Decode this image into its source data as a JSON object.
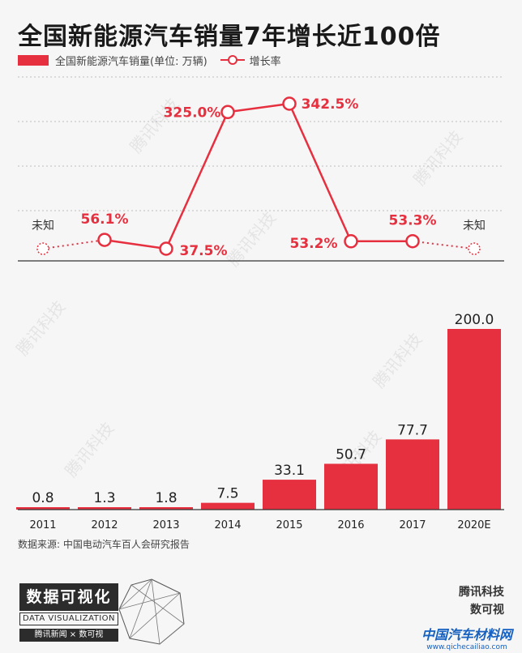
{
  "header": {
    "title": "全国新能源汽车销量7年增长近100倍",
    "legend_sales": "全国新能源汽车销量(单位: 万辆)",
    "legend_rate": "增长率"
  },
  "chart_data": [
    {
      "type": "line",
      "title": "",
      "series": [
        {
          "name": "增长率",
          "values": [
            null,
            56.1,
            37.5,
            325.0,
            342.5,
            53.2,
            53.3,
            null
          ]
        }
      ],
      "labels": [
        "未知",
        "56.1%",
        "37.5%",
        "325.0%",
        "342.5%",
        "53.2%",
        "53.3%",
        "未知"
      ],
      "unknown_label": "未知",
      "categories": [
        "2011",
        "2012",
        "2013",
        "2014",
        "2015",
        "2016",
        "2017",
        "2020E"
      ],
      "ylim": [
        0,
        400
      ],
      "grid": true,
      "color": "#e6303f"
    },
    {
      "type": "bar",
      "title": "",
      "categories": [
        "2011",
        "2012",
        "2013",
        "2014",
        "2015",
        "2016",
        "2017",
        "2020E"
      ],
      "series": [
        {
          "name": "全国新能源汽车销量",
          "values": [
            0.8,
            1.3,
            1.8,
            7.5,
            33.1,
            50.7,
            77.7,
            200.0
          ]
        }
      ],
      "value_labels": [
        "0.8",
        "1.3",
        "1.8",
        "7.5",
        "33.1",
        "50.7",
        "77.7",
        "200.0"
      ],
      "ylim": [
        0,
        200
      ],
      "color": "#e6303f"
    }
  ],
  "footer": {
    "source": "数据来源: 中国电动汽车百人会研究报告",
    "dv_cn": "数据可视化",
    "dv_en": "DATA VISUALIZATION",
    "partners": "腾讯新闻 × 数可视",
    "brand_line1": "腾讯科技",
    "brand_line2": "数可视",
    "site_name": "中国汽车材料网",
    "site_url": "www.qichecailiao.com"
  },
  "watermark": "腾讯科技"
}
